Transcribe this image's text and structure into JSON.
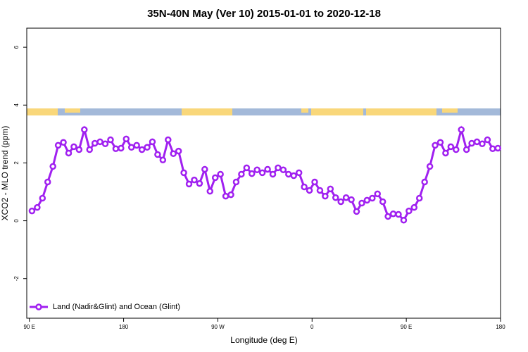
{
  "chart_data": {
    "type": "line",
    "title": "35N-40N May (Ver 10)   2015-01-01 to 2020-12-18",
    "x_label": "Longitude (deg E)",
    "y_label": "XCO2 - MLO trend (ppm)",
    "xlim": [
      87.5,
      540
    ],
    "ylim": [
      -3.37,
      6.66
    ],
    "xticks": [
      {
        "value": 90,
        "label": "90 E"
      },
      {
        "value": 180,
        "label": "180"
      },
      {
        "value": 270,
        "label": "90 W"
      },
      {
        "value": 360,
        "label": "0"
      },
      {
        "value": 450,
        "label": "90 E"
      },
      {
        "value": 540,
        "label": "180"
      }
    ],
    "yticks": [
      -2,
      0,
      2,
      4,
      6
    ],
    "legend_position": "bottom-left",
    "x": [
      92.5,
      97.5,
      102.5,
      107.5,
      112.5,
      117.5,
      122.5,
      127.5,
      132.5,
      137.5,
      142.5,
      147.5,
      152.5,
      157.5,
      162.5,
      167.5,
      172.5,
      177.5,
      182.5,
      187.5,
      192.5,
      197.5,
      202.5,
      207.5,
      212.5,
      217.5,
      222.5,
      227.5,
      232.5,
      237.5,
      242.5,
      247.5,
      252.5,
      257.5,
      262.5,
      267.5,
      272.5,
      277.5,
      282.5,
      287.5,
      292.5,
      297.5,
      302.5,
      307.5,
      312.5,
      317.5,
      322.5,
      327.5,
      332.5,
      337.5,
      342.5,
      347.5,
      352.5,
      357.5,
      362.5,
      367.5,
      372.5,
      377.5,
      382.5,
      387.5,
      392.5,
      397.5,
      402.5,
      407.5,
      412.5,
      417.5,
      422.5,
      427.5,
      432.5,
      437.5,
      442.5,
      447.5,
      452.5,
      457.5,
      462.5,
      467.5,
      472.5,
      477.5,
      482.5,
      487.5,
      492.5,
      497.5,
      502.5,
      507.5,
      512.5,
      517.5,
      522.5,
      527.5,
      532.5,
      537.5
    ],
    "series": [
      {
        "name": "Land (Nadir&Glint) and Ocean (Glint)",
        "color": "#a020f0",
        "values": [
          0.34,
          0.46,
          0.78,
          1.34,
          1.88,
          2.61,
          2.71,
          2.34,
          2.56,
          2.46,
          3.15,
          2.46,
          2.68,
          2.73,
          2.66,
          2.8,
          2.49,
          2.51,
          2.83,
          2.54,
          2.61,
          2.46,
          2.54,
          2.73,
          2.29,
          2.1,
          2.8,
          2.32,
          2.41,
          1.66,
          1.27,
          1.41,
          1.29,
          1.78,
          1.02,
          1.49,
          1.61,
          0.85,
          0.9,
          1.34,
          1.61,
          1.83,
          1.63,
          1.76,
          1.66,
          1.78,
          1.61,
          1.83,
          1.76,
          1.61,
          1.56,
          1.66,
          1.17,
          1.05,
          1.34,
          1.05,
          0.85,
          1.1,
          0.8,
          0.66,
          0.8,
          0.73,
          0.32,
          0.61,
          0.71,
          0.78,
          0.93,
          0.66,
          0.15,
          0.24,
          0.22,
          0.02,
          0.34,
          0.46,
          0.78,
          1.34,
          1.88,
          2.61,
          2.71,
          2.34,
          2.56,
          2.46,
          3.15,
          2.46,
          2.68,
          2.73,
          2.66,
          2.8,
          2.49,
          2.51
        ]
      }
    ]
  }
}
